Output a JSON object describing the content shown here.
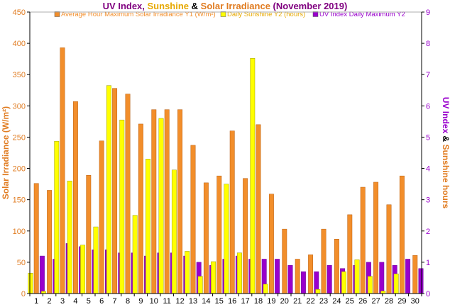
{
  "chart_data": {
    "type": "bar",
    "title_parts": [
      {
        "text": "UV Index",
        "color": "#800080"
      },
      {
        "text": ", ",
        "color": "#800080"
      },
      {
        "text": "Sunshine",
        "color": "#e6a800"
      },
      {
        "text": " & ",
        "color": "#000000"
      },
      {
        "text": "Solar Irradiance",
        "color": "#e07b20"
      },
      {
        "text": " (November 2019)",
        "color": "#800080"
      }
    ],
    "ylabel_left": "Solar Irradiance (W/m²)",
    "ylabel_right_parts": [
      {
        "text": "UV Index",
        "color": "#9900cc"
      },
      {
        "text": " & ",
        "color": "#000000"
      },
      {
        "text": "Sunshine hours",
        "color": "#e07b20"
      }
    ],
    "y_left": {
      "min": 0,
      "max": 450,
      "step": 50,
      "color": "#e07b20"
    },
    "y_right": {
      "min": 0,
      "max": 9,
      "step": 1,
      "color": "#9900cc"
    },
    "categories": [
      "1",
      "2",
      "3",
      "4",
      "5",
      "6",
      "7",
      "8",
      "9",
      "10",
      "11",
      "12",
      "13",
      "14",
      "15",
      "16",
      "17",
      "18",
      "19",
      "20",
      "21",
      "22",
      "23",
      "24",
      "25",
      "26",
      "27",
      "28",
      "29",
      "30"
    ],
    "series": [
      {
        "name": "Average Hour Maximum Solar Irradiance Y1 (W/m²)",
        "axis": "left",
        "color": "#f28e2b",
        "values": [
          176,
          165,
          393,
          307,
          189,
          244,
          328,
          319,
          271,
          294,
          294,
          294,
          237,
          177,
          188,
          260,
          184,
          270,
          159,
          103,
          55,
          62,
          103,
          87,
          126,
          170,
          178,
          142,
          188,
          61
        ]
      },
      {
        "name": "Daily Sunshine Y2 (hours)",
        "axis": "right",
        "color": "#ffff00",
        "values": [
          0.65,
          0.07,
          4.87,
          3.6,
          1.55,
          2.13,
          6.65,
          5.55,
          2.5,
          4.3,
          5.6,
          3.95,
          1.35,
          0.55,
          1.02,
          3.5,
          1.3,
          7.52,
          0.3,
          0,
          0,
          0,
          0.13,
          0,
          0.7,
          1.08,
          0.55,
          0.08,
          0.63,
          0
        ]
      },
      {
        "name": "UV Index Daily Maximum Y2",
        "axis": "right",
        "color": "#9900cc",
        "values": [
          1.2,
          1.1,
          1.6,
          1.5,
          1.4,
          1.4,
          1.3,
          1.3,
          1.2,
          1.3,
          1.3,
          1.2,
          1.0,
          0.9,
          1.1,
          1.2,
          1.1,
          1.1,
          1.1,
          0.9,
          0.7,
          0.7,
          0.9,
          0.8,
          0.9,
          1.0,
          1.0,
          0.9,
          1.1,
          0.8
        ]
      }
    ],
    "grid": false,
    "legend_position": "top"
  }
}
